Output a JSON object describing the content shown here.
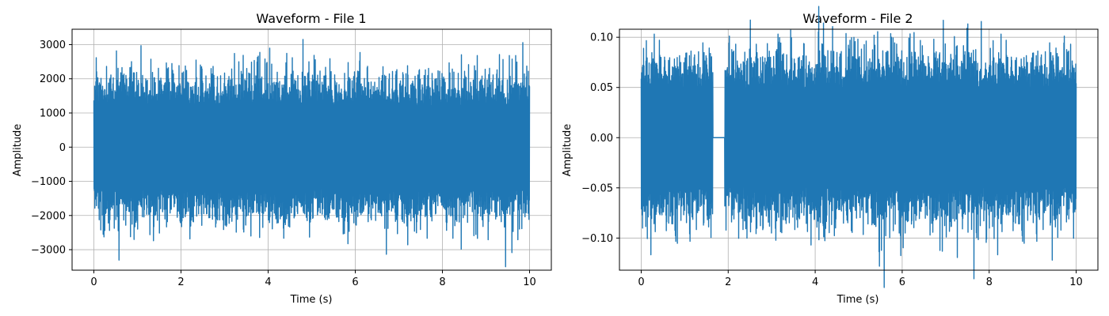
{
  "chart_data": [
    {
      "type": "line",
      "title": "Waveform - File 1",
      "xlabel": "Time (s)",
      "ylabel": "Amplitude",
      "xlim": [
        -0.5,
        10.5
      ],
      "ylim": [
        -3600,
        3450
      ],
      "xticks": [
        0,
        2,
        4,
        6,
        8,
        10
      ],
      "yticks": [
        -3000,
        -2000,
        -1000,
        0,
        1000,
        2000,
        3000
      ],
      "xtick_labels": [
        "0",
        "2",
        "4",
        "6",
        "8",
        "10"
      ],
      "ytick_labels": [
        "−3000",
        "−2000",
        "−1000",
        "0",
        "1000",
        "2000",
        "3000"
      ],
      "grid": true,
      "color": "#1f77b4",
      "series": [
        {
          "duration_s": 10,
          "typical_envelope": [
            -1200,
            1200
          ],
          "peak_high": 3150,
          "peak_high_at_s": 4.8,
          "peak_low": -3500,
          "peak_low_at_s": 9.45,
          "silent_segments": []
        }
      ]
    },
    {
      "type": "line",
      "title": "Waveform - File 2",
      "xlabel": "Time (s)",
      "ylabel": "Amplitude",
      "xlim": [
        -0.5,
        10.5
      ],
      "ylim": [
        -0.132,
        0.108
      ],
      "xticks": [
        0,
        2,
        4,
        6,
        8,
        10
      ],
      "yticks": [
        -0.1,
        -0.05,
        0.0,
        0.05,
        0.1
      ],
      "xtick_labels": [
        "0",
        "2",
        "4",
        "6",
        "8",
        "10"
      ],
      "ytick_labels": [
        "−0.10",
        "−0.05",
        "0.00",
        "0.05",
        "0.10"
      ],
      "grid": true,
      "color": "#1f77b4",
      "series": [
        {
          "duration_s": 10,
          "typical_envelope": [
            -0.048,
            0.048
          ],
          "peak_high": 0.097,
          "peak_high_at_s": 4.8,
          "peak_low": -0.122,
          "peak_low_at_s": 9.45,
          "silent_segments": [
            [
              1.65,
              1.92
            ]
          ]
        }
      ]
    }
  ]
}
